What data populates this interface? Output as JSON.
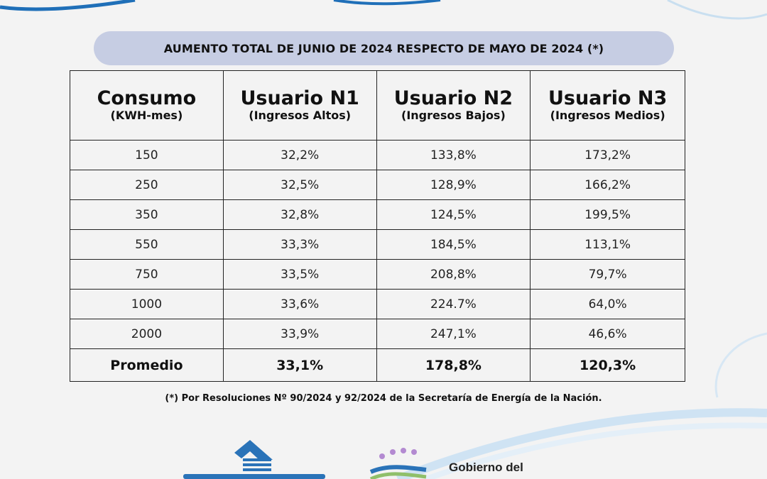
{
  "title": "AUMENTO TOTAL DE JUNIO DE 2024 RESPECTO DE MAYO DE 2024 (*)",
  "table": {
    "headers": [
      {
        "main": "Consumo",
        "sub": "(KWH-mes)"
      },
      {
        "main": "Usuario N1",
        "sub": "(Ingresos Altos)"
      },
      {
        "main": "Usuario N2",
        "sub": "(Ingresos Bajos)"
      },
      {
        "main": "Usuario N3",
        "sub": "(Ingresos Medios)"
      }
    ],
    "rows": [
      [
        "150",
        "32,2%",
        "133,8%",
        "173,2%"
      ],
      [
        "250",
        "32,5%",
        "128,9%",
        "166,2%"
      ],
      [
        "350",
        "32,8%",
        "124,5%",
        "199,5%"
      ],
      [
        "550",
        "33,3%",
        "184,5%",
        "113,1%"
      ],
      [
        "750",
        "33,5%",
        "208,8%",
        "79,7%"
      ],
      [
        "1000",
        "33,6%",
        "224.7%",
        "64,0%"
      ],
      [
        "2000",
        "33,9%",
        "247,1%",
        "46,6%"
      ]
    ],
    "total": [
      "Promedio",
      "33,1%",
      "178,8%",
      "120,3%"
    ]
  },
  "footnote": "(*) Por Resoluciones Nº 90/2024 y 92/2024 de la Secretaría de Energía de la Nación.",
  "logos": {
    "left": {
      "icon": "epen-logo-icon"
    },
    "right": {
      "icon": "gobierno-logo-icon",
      "text": "Gobierno del"
    }
  },
  "colors": {
    "banner_bg": "#c6cde3",
    "background": "#f3f3f3",
    "deco_blue": "#1f6fb8",
    "deco_light": "#c9dff0",
    "logo_blue": "#2a73b8",
    "dot_purple": "#b38ad1"
  }
}
